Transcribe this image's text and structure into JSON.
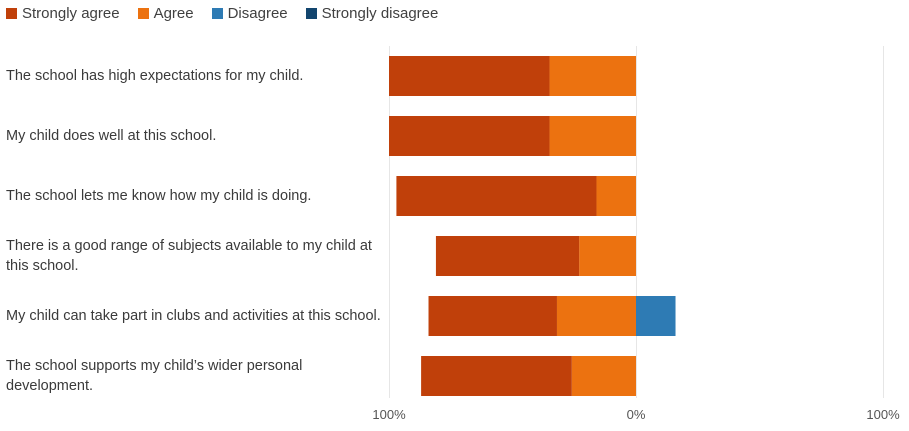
{
  "chart_data": {
    "type": "bar",
    "orientation": "horizontal-diverging",
    "legend_position": "top-left",
    "grid": true,
    "categories": [
      "The school has high expectations for my child.",
      "My child does well at this school.",
      "The school lets me know how my child is doing.",
      "There is a good range of subjects available to my child at this school.",
      "My child can take part in clubs and activities at this school.",
      "The school supports my child’s wider personal development."
    ],
    "series": [
      {
        "name": "Strongly agree",
        "color": "#c0400a",
        "side": "left",
        "values": [
          65,
          65,
          81,
          58,
          52,
          61
        ]
      },
      {
        "name": "Agree",
        "color": "#ec7210",
        "side": "left",
        "values": [
          35,
          35,
          16,
          23,
          32,
          26
        ]
      },
      {
        "name": "Disagree",
        "color": "#2e7bb4",
        "side": "right",
        "values": [
          0,
          0,
          0,
          0,
          16,
          0
        ]
      },
      {
        "name": "Strongly disagree",
        "color": "#12456e",
        "side": "right",
        "values": [
          0,
          0,
          0,
          0,
          0,
          0
        ]
      }
    ],
    "tick_labels": [
      "100%",
      "0%",
      "100%"
    ],
    "xlim": [
      -100,
      100
    ]
  }
}
